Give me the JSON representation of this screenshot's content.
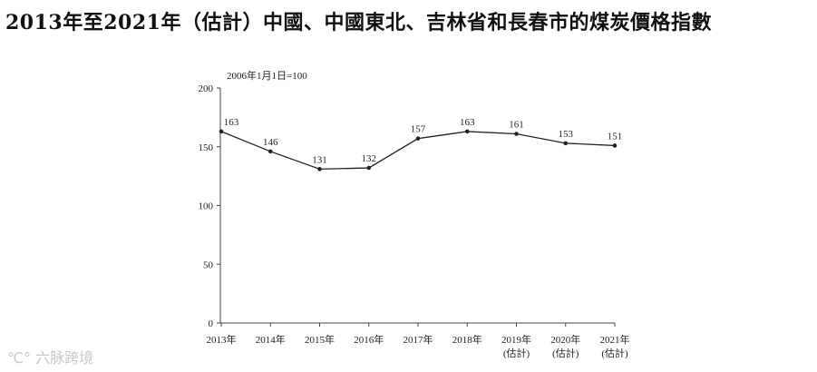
{
  "title": "2013年至2021年（估計）中國、中國東北、吉林省和長春市的煤炭價格指數",
  "watermark": "六脉跨境",
  "chart_data": {
    "type": "line",
    "note": "2006年1月1日=100",
    "categories": [
      {
        "year": "2013年",
        "est": ""
      },
      {
        "year": "2014年",
        "est": ""
      },
      {
        "year": "2015年",
        "est": ""
      },
      {
        "year": "2016年",
        "est": ""
      },
      {
        "year": "2017年",
        "est": ""
      },
      {
        "year": "2018年",
        "est": ""
      },
      {
        "year": "2019年",
        "est": "(估計)"
      },
      {
        "year": "2020年",
        "est": "(估計)"
      },
      {
        "year": "2021年",
        "est": "(估計)"
      }
    ],
    "values": [
      163,
      146,
      131,
      132,
      157,
      163,
      161,
      153,
      151
    ],
    "ylim": [
      0,
      200
    ],
    "yticks": [
      0,
      50,
      100,
      150,
      200
    ],
    "grid": false,
    "colors": {
      "line": "#222222",
      "axis": "#444444"
    }
  }
}
